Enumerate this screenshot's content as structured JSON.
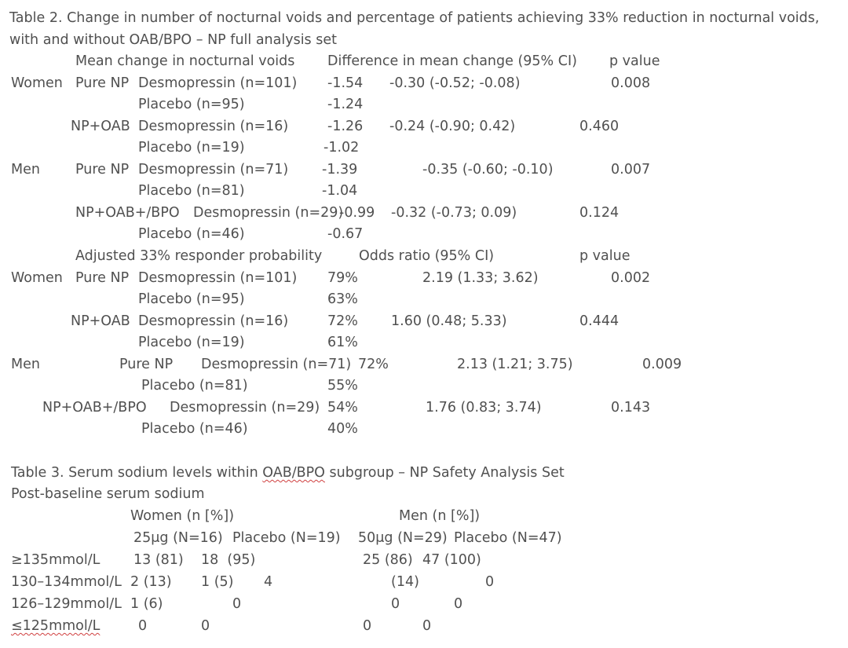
{
  "table2": {
    "caption_line1": "Table 2. Change in number of nocturnal voids and percentage of patients achieving 33% reduction in nocturnal voids,",
    "caption_line2": "with and without OAB/BPO – NP full analysis set",
    "part1_headers": {
      "mean_change": "Mean change in nocturnal voids",
      "difference": "Difference in mean change (95% CI)",
      "p_value": "p value"
    },
    "part1_rows": [
      {
        "sex": "Women",
        "group": "Pure NP",
        "arm": "Desmopressin (n=101)",
        "value": "-1.54",
        "diff": "-0.30 (-0.52; -0.08)",
        "p": "0.008"
      },
      {
        "sex": "",
        "group": "",
        "arm": "Placebo (n=95)",
        "value": "-1.24",
        "diff": "",
        "p": ""
      },
      {
        "sex": "",
        "group": "NP+OAB",
        "arm": "Desmopressin (n=16)",
        "value": "-1.26",
        "diff": "-0.24 (-0.90; 0.42)",
        "p": "0.460"
      },
      {
        "sex": "",
        "group": "",
        "arm": "Placebo (n=19)",
        "value": "-1.02",
        "diff": "",
        "p": ""
      },
      {
        "sex": "Men",
        "group": "Pure NP",
        "arm": "Desmopressin (n=71)",
        "value": "-1.39",
        "diff": "-0.35 (-0.60; -0.10)",
        "p": "0.007"
      },
      {
        "sex": "",
        "group": "",
        "arm": "Placebo (n=81)",
        "value": "-1.04",
        "diff": "",
        "p": ""
      },
      {
        "sex": "",
        "group": "NP+OAB+/BPO",
        "arm": "Desmopressin (n=29)",
        "value": "-0.99",
        "diff": "-0.32 (-0.73; 0.09)",
        "p": "0.124"
      },
      {
        "sex": "",
        "group": "",
        "arm": "Placebo (n=46)",
        "value": "-0.67",
        "diff": "",
        "p": ""
      }
    ],
    "part2_headers": {
      "probability": "Adjusted 33% responder probability",
      "odds_ratio": "Odds ratio (95% CI)",
      "p_value": "p value"
    },
    "part2_rows": [
      {
        "sex": "Women",
        "group": "Pure NP",
        "arm": "Desmopressin (n=101)",
        "value": "79%",
        "or": "2.19 (1.33; 3.62)",
        "p": "0.002"
      },
      {
        "sex": "",
        "group": "",
        "arm": "Placebo (n=95)",
        "value": "63%",
        "or": "",
        "p": ""
      },
      {
        "sex": "",
        "group": "NP+OAB",
        "arm": "Desmopressin (n=16)",
        "value": "72%",
        "or": "1.60 (0.48; 5.33)",
        "p": "0.444"
      },
      {
        "sex": "",
        "group": "",
        "arm": "Placebo (n=19)",
        "value": "61%",
        "or": "",
        "p": ""
      },
      {
        "sex": "Men",
        "group": "Pure NP",
        "arm": "Desmopressin (n=71)",
        "value": "72%",
        "or": "2.13 (1.21; 3.75)",
        "p": "0.009"
      },
      {
        "sex": "",
        "group": "",
        "arm": "Placebo (n=81)",
        "value": "55%",
        "or": "",
        "p": ""
      },
      {
        "sex": "",
        "group": "NP+OAB+/BPO",
        "arm": "Desmopressin (n=29)",
        "value": "54%",
        "or": "1.76 (0.83; 3.74)",
        "p": "0.143"
      },
      {
        "sex": "",
        "group": "",
        "arm": "Placebo (n=46)",
        "value": "40%",
        "or": "",
        "p": ""
      }
    ]
  },
  "table3": {
    "caption_prefix": "Table 3. Serum sodium levels within ",
    "caption_flagged": "OAB/BPO",
    "caption_suffix": " subgroup – NP Safety Analysis Set",
    "subtitle": "Post-baseline serum sodium",
    "women_header": "Women (n [%])",
    "men_header": "Men (n [%])",
    "col_women_drug": "25μg (N=16)",
    "col_women_placebo": "Placebo (N=19)",
    "col_men_drug": "50μg (N=29)",
    "col_men_placebo": "Placebo (N=47)",
    "rows": [
      {
        "range": "≥135mmol/L",
        "women_drug": "13 (81)",
        "women_placebo": "18  (95)",
        "men_drug": "25 (86)",
        "men_placebo": "47 (100)"
      },
      {
        "range": "130–134mmol/L",
        "women_drug": "2 (13)",
        "women_placebo": "1 (5)",
        "extra": "4",
        "men_drug": "(14)",
        "men_placebo": "0"
      },
      {
        "range": "126–129mmol/L",
        "women_drug": "1 (6)",
        "women_placebo": "0",
        "men_drug": "0",
        "men_placebo": "0"
      },
      {
        "range": "≤125mmol/L",
        "women_drug": "0",
        "women_placebo": "0",
        "men_drug": "0",
        "men_placebo": "0"
      }
    ]
  }
}
